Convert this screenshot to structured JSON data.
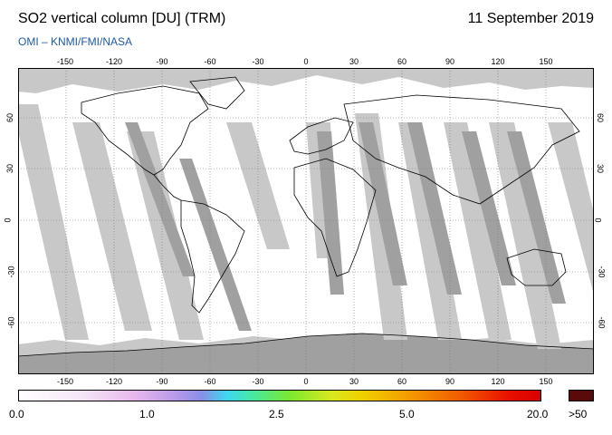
{
  "header": {
    "title": "SO2 vertical column [DU] (TRM)",
    "date": "11 September 2019",
    "credit": "OMI  –  KNMI/FMI/NASA"
  },
  "map": {
    "projection": "equirectangular",
    "lon_ticks": [
      "-150",
      "-120",
      "-90",
      "-60",
      "-30",
      "0",
      "30",
      "60",
      "90",
      "120",
      "150"
    ],
    "lat_ticks": [
      "60",
      "30",
      "0",
      "-30",
      "-60"
    ],
    "colors": {
      "no_data": "#c8c8c8",
      "orbit_overlap": "#a0a0a0",
      "coastline": "#000000",
      "low_value": "#ffffff"
    }
  },
  "colorbar": {
    "labels": [
      "0.0",
      "1.0",
      "2.5",
      "5.0",
      "20.0"
    ],
    "over_label": ">50",
    "over_color": "#5a0a0a"
  }
}
